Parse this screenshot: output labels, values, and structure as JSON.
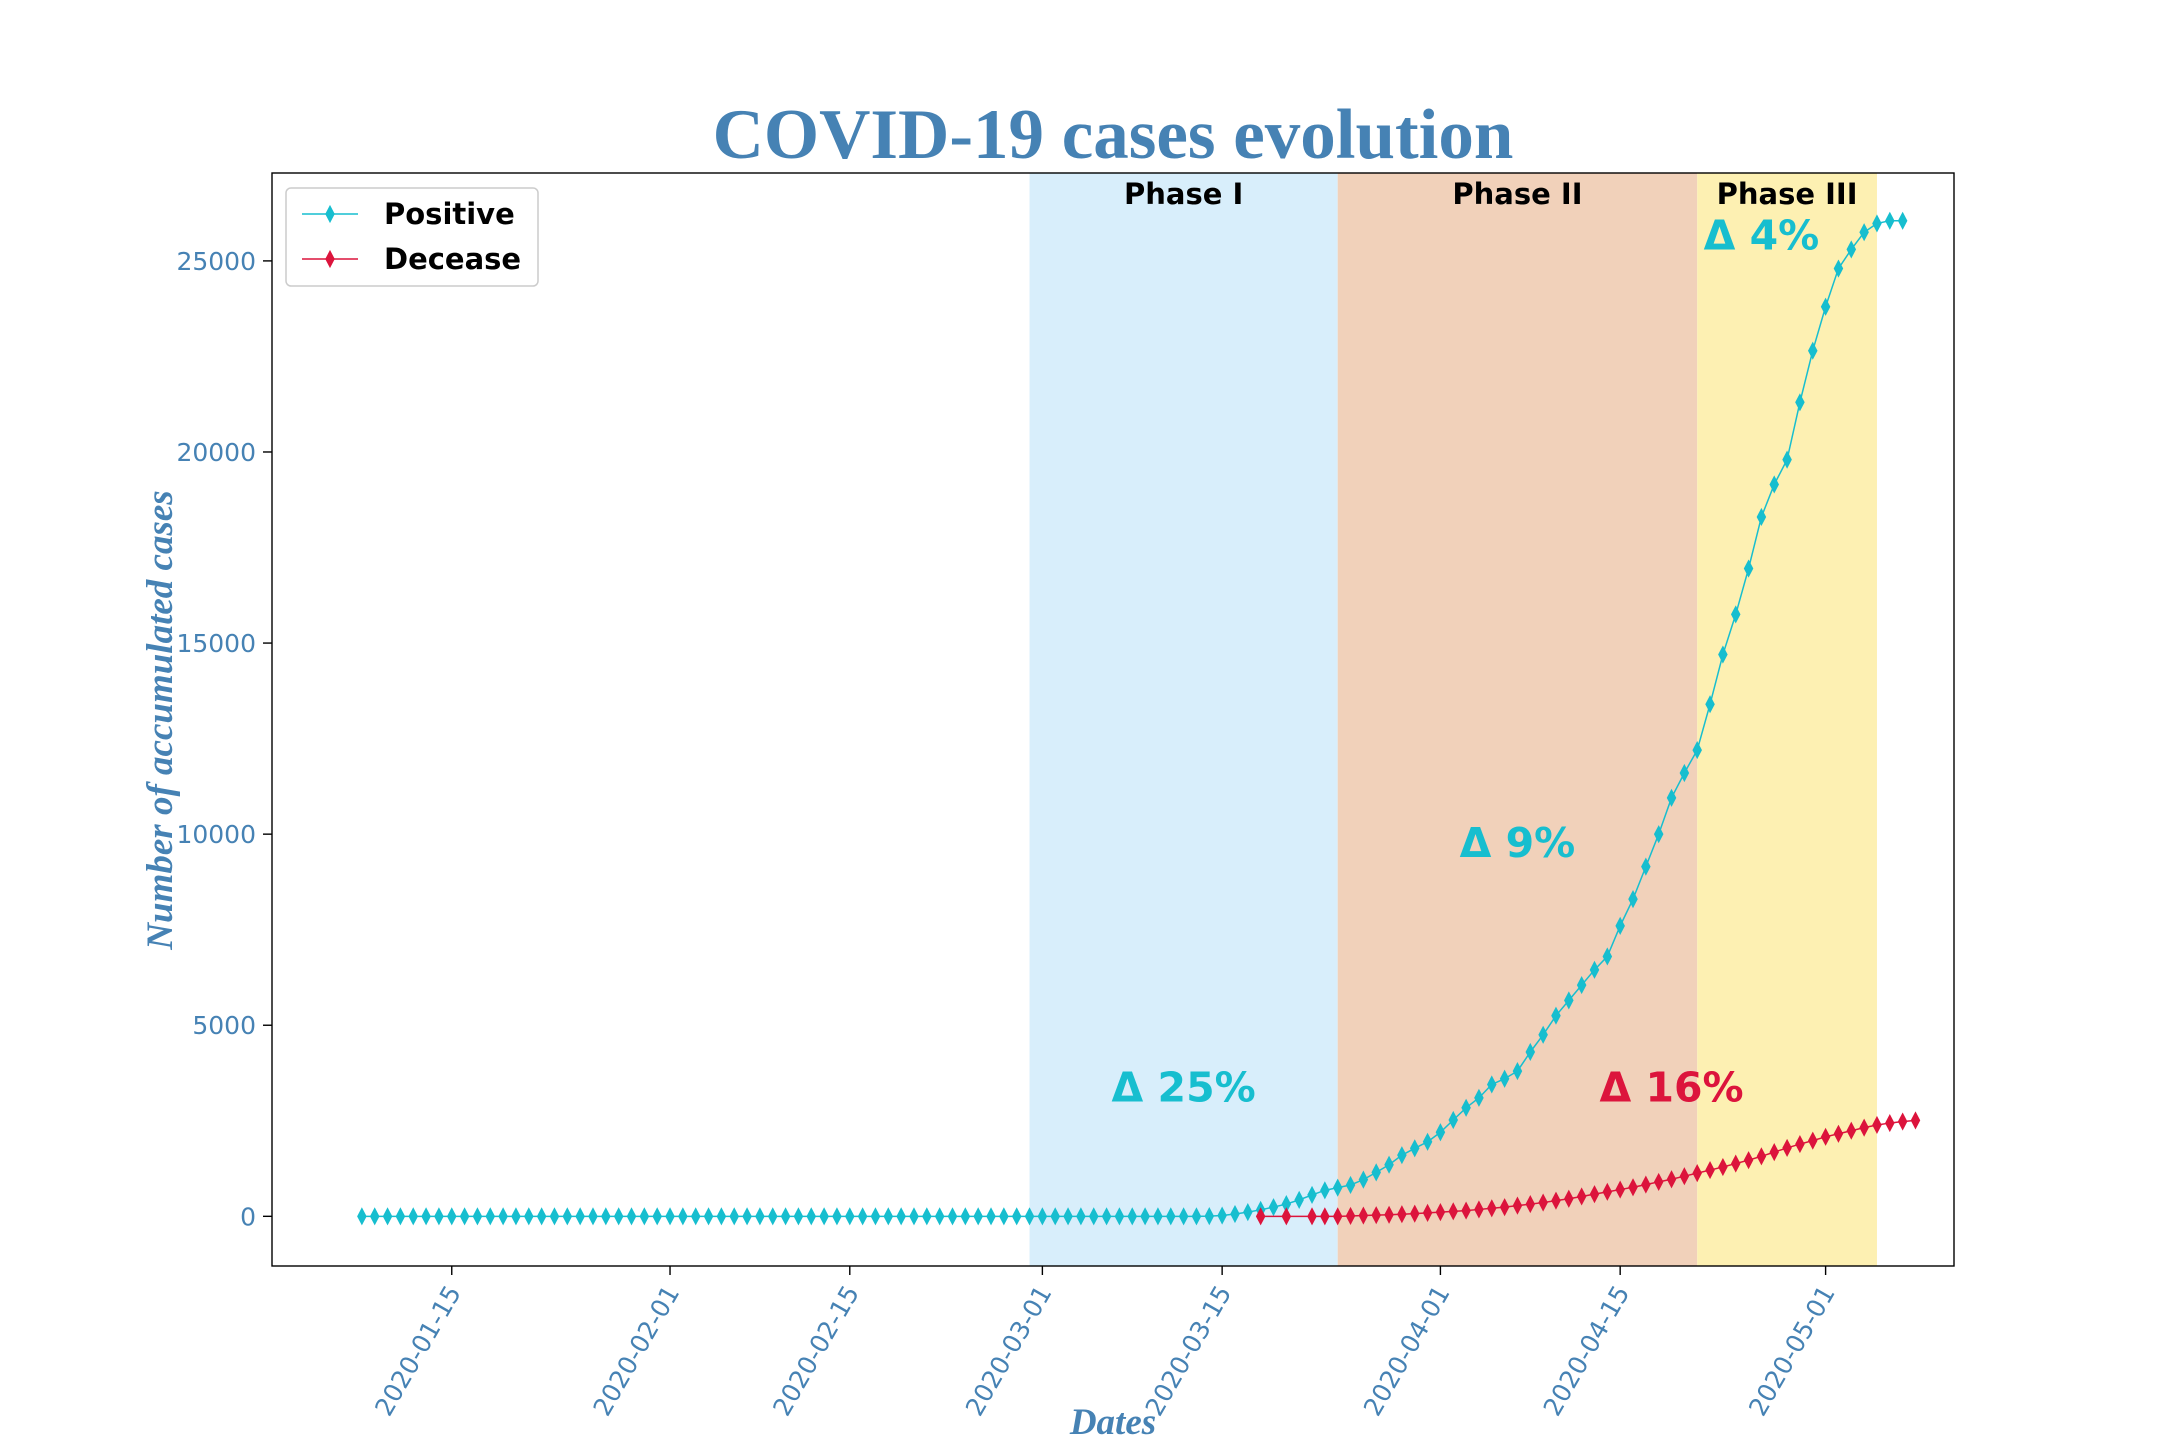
{
  "colors": {
    "positive": "#17becf",
    "decease": "#dc143c",
    "axis_text": "#4682b4",
    "phase1": "#d8eefb",
    "phase2": "#f1d1ba",
    "phase3": "#fdf0b2"
  },
  "chart_data": {
    "type": "line",
    "title": "COVID-19 cases evolution",
    "xlabel": "Dates",
    "ylabel": "Number of accumulated cases",
    "x_ticks": [
      "2020-01-15",
      "2020-02-01",
      "2020-02-15",
      "2020-03-01",
      "2020-03-15",
      "2020-04-01",
      "2020-04-15",
      "2020-05-01"
    ],
    "y_ticks": [
      0,
      5000,
      10000,
      15000,
      20000,
      25000
    ],
    "xlim": [
      "2020-01-01",
      "2020-05-11"
    ],
    "ylim": [
      -1300,
      27300
    ],
    "grid": false,
    "legend_position": "upper-left",
    "marker": "thin_diamond",
    "phases": [
      {
        "label": "Phase I",
        "start": "2020-02-29",
        "end": "2020-03-24",
        "delta_label": "Δ 25%",
        "delta_series": "positive",
        "delta_x": "2020-03-12",
        "delta_y": 3000
      },
      {
        "label": "Phase II",
        "start": "2020-03-24",
        "end": "2020-04-21",
        "delta_label": "Δ 9%",
        "delta_series": "positive",
        "delta_x": "2020-04-07",
        "delta_y": 9400
      },
      {
        "label": "Phase III",
        "start": "2020-04-21",
        "end": "2020-05-05",
        "delta_label": "Δ 4%",
        "delta_series": "positive",
        "delta_x": "2020-04-26",
        "delta_y": 25300
      }
    ],
    "extra_annotations": [
      {
        "label": "Δ 16%",
        "series": "decease",
        "x": "2020-04-19",
        "y": 3000
      }
    ],
    "series": [
      {
        "name": "Positive",
        "start_date": "2020-01-08",
        "values": [
          0,
          0,
          0,
          0,
          0,
          0,
          0,
          0,
          0,
          0,
          0,
          0,
          0,
          0,
          0,
          0,
          0,
          0,
          0,
          0,
          0,
          0,
          0,
          0,
          0,
          0,
          0,
          0,
          0,
          0,
          0,
          0,
          0,
          0,
          0,
          0,
          0,
          0,
          0,
          0,
          0,
          0,
          0,
          0,
          0,
          0,
          0,
          0,
          0,
          0,
          0,
          0,
          0,
          0,
          0,
          0,
          0,
          0,
          0,
          0,
          0,
          0,
          0,
          0,
          0,
          0,
          5,
          20,
          60,
          110,
          170,
          240,
          320,
          430,
          560,
          680,
          750,
          820,
          960,
          1150,
          1350,
          1600,
          1780,
          1950,
          2200,
          2520,
          2840,
          3100,
          3450,
          3600,
          3800,
          4300,
          4750,
          5250,
          5650,
          6050,
          6450,
          6800,
          7600,
          8300,
          9150,
          10000,
          10950,
          11600,
          12200,
          13400,
          14700,
          15750,
          16950,
          18300,
          19150,
          19800,
          21300,
          22650,
          23800,
          24800,
          25300,
          25750,
          25980,
          26050,
          26050
        ]
      },
      {
        "name": "Decease",
        "dates": [
          "2020-03-18",
          "2020-03-20",
          "2020-03-22"
        ],
        "values": [
          0,
          0,
          0
        ],
        "continuation_start_date": "2020-03-23",
        "continuation_values": [
          0,
          0,
          10,
          20,
          30,
          40,
          55,
          70,
          90,
          110,
          130,
          150,
          180,
          210,
          240,
          280,
          320,
          360,
          410,
          460,
          520,
          580,
          640,
          700,
          760,
          830,
          900,
          970,
          1050,
          1130,
          1210,
          1290,
          1380,
          1470,
          1570,
          1680,
          1790,
          1890,
          1980,
          2080,
          2160,
          2240,
          2320,
          2390,
          2440,
          2480,
          2510
        ]
      }
    ]
  }
}
